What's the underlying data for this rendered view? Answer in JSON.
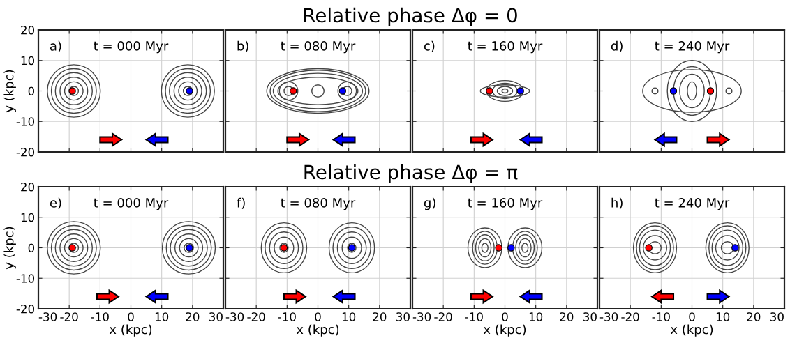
{
  "chart_data": [
    {
      "type": "scatter",
      "annotations": [
        "a)",
        "t = 000 Myr"
      ],
      "ylabel": "y (kpc)",
      "xlim": [
        -30,
        30
      ],
      "ylim": [
        -20,
        20
      ],
      "xticks": [
        -30,
        -20,
        -10,
        0,
        10,
        20,
        30
      ],
      "yticks": [
        -20,
        -10,
        0,
        10,
        20
      ],
      "grid": true,
      "marker": "circle",
      "tick_labels": "y",
      "series": [
        {
          "color": "#ff0000",
          "x": [
            -19
          ],
          "values": [
            0
          ]
        },
        {
          "color": "#0000ff",
          "x": [
            19
          ],
          "values": [
            0
          ]
        }
      ]
    },
    {
      "type": "scatter",
      "annotations": [
        "b)",
        "t = 080 Myr",
        "Relative phase Δφ = 0"
      ],
      "xlim": [
        -30,
        30
      ],
      "ylim": [
        -20,
        20
      ],
      "xticks": [
        -30,
        -20,
        -10,
        0,
        10,
        20,
        30
      ],
      "yticks": [
        -20,
        -10,
        0,
        10,
        20
      ],
      "grid": true,
      "marker": "circle",
      "tick_labels": false,
      "series": [
        {
          "color": "#ff0000",
          "x": [
            -8
          ],
          "values": [
            0
          ]
        },
        {
          "color": "#0000ff",
          "x": [
            8
          ],
          "values": [
            0
          ]
        }
      ]
    },
    {
      "type": "scatter",
      "annotations": [
        "c)",
        "t = 160 Myr"
      ],
      "xlim": [
        -30,
        30
      ],
      "ylim": [
        -20,
        20
      ],
      "xticks": [
        -30,
        -20,
        -10,
        0,
        10,
        20,
        30
      ],
      "yticks": [
        -20,
        -10,
        0,
        10,
        20
      ],
      "grid": true,
      "marker": "circle",
      "tick_labels": false,
      "series": [
        {
          "color": "#ff0000",
          "x": [
            -5
          ],
          "values": [
            0
          ]
        },
        {
          "color": "#0000ff",
          "x": [
            5
          ],
          "values": [
            0
          ]
        }
      ]
    },
    {
      "type": "scatter",
      "annotations": [
        "d)",
        "t = 240 Myr"
      ],
      "xlim": [
        -30,
        30
      ],
      "ylim": [
        -20,
        20
      ],
      "xticks": [
        -30,
        -20,
        -10,
        0,
        10,
        20,
        30
      ],
      "yticks": [
        -20,
        -10,
        0,
        10,
        20
      ],
      "grid": true,
      "marker": "circle",
      "tick_labels": false,
      "series": [
        {
          "color": "#ff0000",
          "x": [
            6
          ],
          "values": [
            0
          ]
        },
        {
          "color": "#0000ff",
          "x": [
            -6
          ],
          "values": [
            0
          ]
        }
      ]
    },
    {
      "type": "scatter",
      "annotations": [
        "e)",
        "t = 000 Myr"
      ],
      "xlabel": "x (kpc)",
      "ylabel": "y (kpc)",
      "xlim": [
        -30,
        30
      ],
      "ylim": [
        -20,
        20
      ],
      "xticks": [
        -30,
        -20,
        -10,
        0,
        10,
        20,
        30
      ],
      "yticks": [
        -20,
        -10,
        0,
        10,
        20
      ],
      "grid": true,
      "marker": "circle",
      "series": [
        {
          "color": "#ff0000",
          "x": [
            -19
          ],
          "values": [
            0
          ]
        },
        {
          "color": "#0000ff",
          "x": [
            19
          ],
          "values": [
            0
          ]
        }
      ]
    },
    {
      "type": "scatter",
      "annotations": [
        "f)",
        "t = 080 Myr",
        "Relative phase Δφ = π"
      ],
      "xlabel": "x (kpc)",
      "xlim": [
        -30,
        30
      ],
      "ylim": [
        -20,
        20
      ],
      "xticks": [
        -30,
        -20,
        -10,
        0,
        10,
        20,
        30
      ],
      "yticks": [
        -20,
        -10,
        0,
        10,
        20
      ],
      "grid": true,
      "marker": "circle",
      "tick_labels": "x",
      "series": [
        {
          "color": "#ff0000",
          "x": [
            -11
          ],
          "values": [
            0
          ]
        },
        {
          "color": "#0000ff",
          "x": [
            11
          ],
          "values": [
            0
          ]
        }
      ]
    },
    {
      "type": "scatter",
      "annotations": [
        "g)",
        "t = 160 Myr"
      ],
      "xlabel": "x (kpc)",
      "xlim": [
        -30,
        30
      ],
      "ylim": [
        -20,
        20
      ],
      "xticks": [
        -30,
        -20,
        -10,
        0,
        10,
        20,
        30
      ],
      "yticks": [
        -20,
        -10,
        0,
        10,
        20
      ],
      "grid": true,
      "marker": "circle",
      "tick_labels": "x",
      "series": [
        {
          "color": "#ff0000",
          "x": [
            -2
          ],
          "values": [
            0
          ]
        },
        {
          "color": "#0000ff",
          "x": [
            2
          ],
          "values": [
            0
          ]
        }
      ]
    },
    {
      "type": "scatter",
      "annotations": [
        "h)",
        "t = 240 Myr"
      ],
      "xlabel": "x (kpc)",
      "xlim": [
        -30,
        30
      ],
      "ylim": [
        -20,
        20
      ],
      "xticks": [
        -30,
        -20,
        -10,
        0,
        10,
        20,
        30
      ],
      "yticks": [
        -20,
        -10,
        0,
        10,
        20
      ],
      "grid": true,
      "marker": "circle",
      "tick_labels": "x",
      "series": [
        {
          "color": "#ff0000",
          "x": [
            -14
          ],
          "values": [
            0
          ]
        },
        {
          "color": "#0000ff",
          "x": [
            14
          ],
          "values": [
            0
          ]
        }
      ]
    }
  ]
}
